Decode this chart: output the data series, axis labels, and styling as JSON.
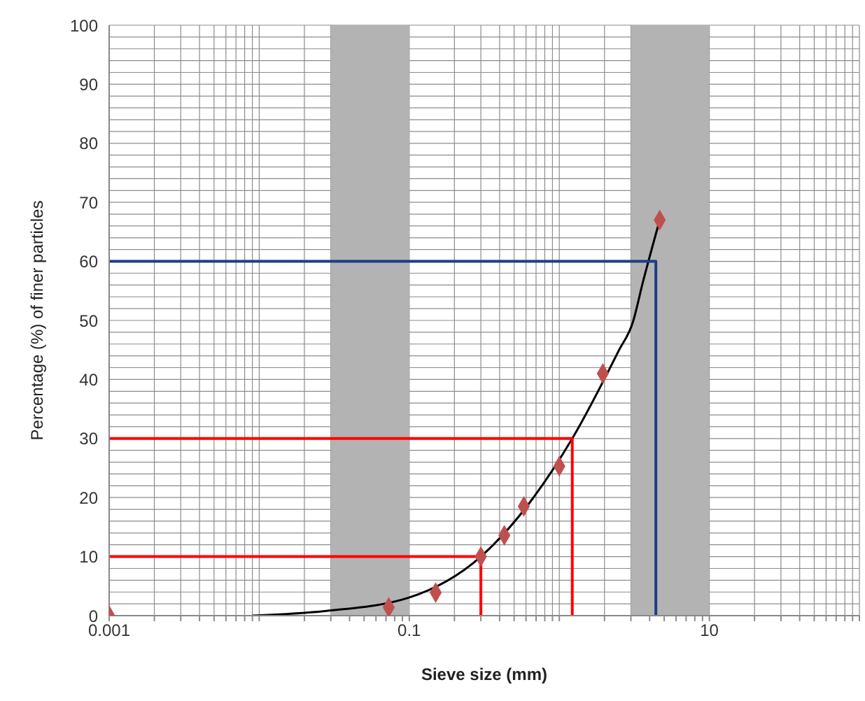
{
  "chart_data": {
    "type": "scatter",
    "xlabel": "Sieve size (mm)",
    "ylabel": "Percentage (%) of finer particles",
    "log": "x",
    "grid": true,
    "xlim": [
      0.001,
      100
    ],
    "ylim": [
      0,
      100
    ],
    "xticks": [
      0.001,
      {
        "value": 0.002,
        "label": null
      },
      {
        "value": 0.003,
        "label": null
      },
      {
        "value": 0.004,
        "label": null
      },
      {
        "value": 0.005,
        "label": null
      },
      {
        "value": 0.006,
        "label": null
      },
      {
        "value": 0.007,
        "label": null
      },
      {
        "value": 0.008,
        "label": null
      },
      {
        "value": 0.009,
        "label": null
      },
      {
        "value": 0.01,
        "label": null
      },
      {
        "value": 0.02,
        "label": null
      },
      {
        "value": 0.03,
        "label": null
      },
      {
        "value": 0.04,
        "label": null
      },
      {
        "value": 0.05,
        "label": null
      },
      {
        "value": 0.06,
        "label": null
      },
      {
        "value": 0.07,
        "label": null
      },
      {
        "value": 0.08,
        "label": null
      },
      {
        "value": 0.09,
        "label": null
      },
      0.1,
      {
        "value": 0.2,
        "label": null
      },
      {
        "value": 0.3,
        "label": null
      },
      {
        "value": 0.4,
        "label": null
      },
      {
        "value": 0.5,
        "label": null
      },
      {
        "value": 0.6,
        "label": null
      },
      {
        "value": 0.7,
        "label": null
      },
      {
        "value": 0.8,
        "label": null
      },
      {
        "value": 0.9,
        "label": null
      },
      {
        "value": 1,
        "label": null
      },
      {
        "value": 2,
        "label": null
      },
      {
        "value": 3,
        "label": null
      },
      {
        "value": 4,
        "label": null
      },
      {
        "value": 5,
        "label": null
      },
      {
        "value": 6,
        "label": null
      },
      {
        "value": 7,
        "label": null
      },
      {
        "value": 8,
        "label": null
      },
      {
        "value": 9,
        "label": null
      },
      10,
      {
        "value": 20,
        "label": null
      },
      {
        "value": 30,
        "label": null
      },
      {
        "value": 40,
        "label": null
      },
      {
        "value": 50,
        "label": null
      },
      {
        "value": 60,
        "label": null
      },
      {
        "value": 70,
        "label": null
      },
      {
        "value": 80,
        "label": null
      },
      {
        "value": 90,
        "label": null
      },
      {
        "value": 100,
        "label": null
      }
    ],
    "yticks": [
      0,
      {
        "value": 2,
        "label": null
      },
      {
        "value": 4,
        "label": null
      },
      {
        "value": 6,
        "label": null
      },
      {
        "value": 8,
        "label": null
      },
      10,
      {
        "value": 12,
        "label": null
      },
      {
        "value": 14,
        "label": null
      },
      {
        "value": 16,
        "label": null
      },
      {
        "value": 18,
        "label": null
      },
      20,
      {
        "value": 22,
        "label": null
      },
      {
        "value": 24,
        "label": null
      },
      {
        "value": 26,
        "label": null
      },
      {
        "value": 28,
        "label": null
      },
      30,
      {
        "value": 32,
        "label": null
      },
      {
        "value": 34,
        "label": null
      },
      {
        "value": 36,
        "label": null
      },
      {
        "value": 38,
        "label": null
      },
      40,
      {
        "value": 42,
        "label": null
      },
      {
        "value": 44,
        "label": null
      },
      {
        "value": 46,
        "label": null
      },
      {
        "value": 48,
        "label": null
      },
      50,
      {
        "value": 52,
        "label": null
      },
      {
        "value": 54,
        "label": null
      },
      {
        "value": 56,
        "label": null
      },
      {
        "value": 58,
        "label": null
      },
      60,
      {
        "value": 62,
        "label": null
      },
      {
        "value": 64,
        "label": null
      },
      {
        "value": 66,
        "label": null
      },
      {
        "value": 68,
        "label": null
      },
      70,
      {
        "value": 72,
        "label": null
      },
      {
        "value": 74,
        "label": null
      },
      {
        "value": 76,
        "label": null
      },
      {
        "value": 78,
        "label": null
      },
      80,
      {
        "value": 82,
        "label": null
      },
      {
        "value": 84,
        "label": null
      },
      {
        "value": 86,
        "label": null
      },
      {
        "value": 88,
        "label": null
      },
      90,
      {
        "value": 92,
        "label": null
      },
      {
        "value": 94,
        "label": null
      },
      {
        "value": 96,
        "label": null
      },
      {
        "value": 98,
        "label": null
      },
      100
    ],
    "bands": [
      {
        "axis": "x",
        "from": 0.03,
        "to": 0.1,
        "color": "#b3b3b3"
      },
      {
        "axis": "x",
        "from": 3,
        "to": 10,
        "color": "#b3b3b3"
      }
    ],
    "series": [
      {
        "type": "line",
        "color": "#000000",
        "marker": "none",
        "x": [
          0.009,
          0.028,
          0.098,
          0.3,
          1.22,
          2.48,
          3.1,
          3.6,
          4.67
        ],
        "values": [
          0,
          0.8,
          3,
          10,
          30,
          44.8,
          49.8,
          56.4,
          67
        ]
      },
      {
        "type": "line",
        "color": "#ff0000",
        "marker": "none",
        "x": [
          0.001,
          0.3,
          0.3
        ],
        "values": [
          10,
          10,
          0
        ]
      },
      {
        "type": "line",
        "color": "#ff0000",
        "marker": "none",
        "x": [
          0.001,
          1.22,
          1.22
        ],
        "values": [
          30,
          30,
          0
        ]
      },
      {
        "type": "line",
        "color": "#1f3c88",
        "marker": "none",
        "x": [
          0.001,
          4.4,
          4.4
        ],
        "values": [
          60,
          60,
          0
        ]
      },
      {
        "color": "#c0504d",
        "marker": "diamond",
        "x": [
          0.001,
          0.073,
          0.15,
          0.3,
          0.43,
          0.58,
          1.0,
          1.95,
          4.67
        ],
        "values": [
          0,
          1.4,
          3.9,
          10,
          13.6,
          18.5,
          25.3,
          41,
          67
        ]
      }
    ]
  }
}
